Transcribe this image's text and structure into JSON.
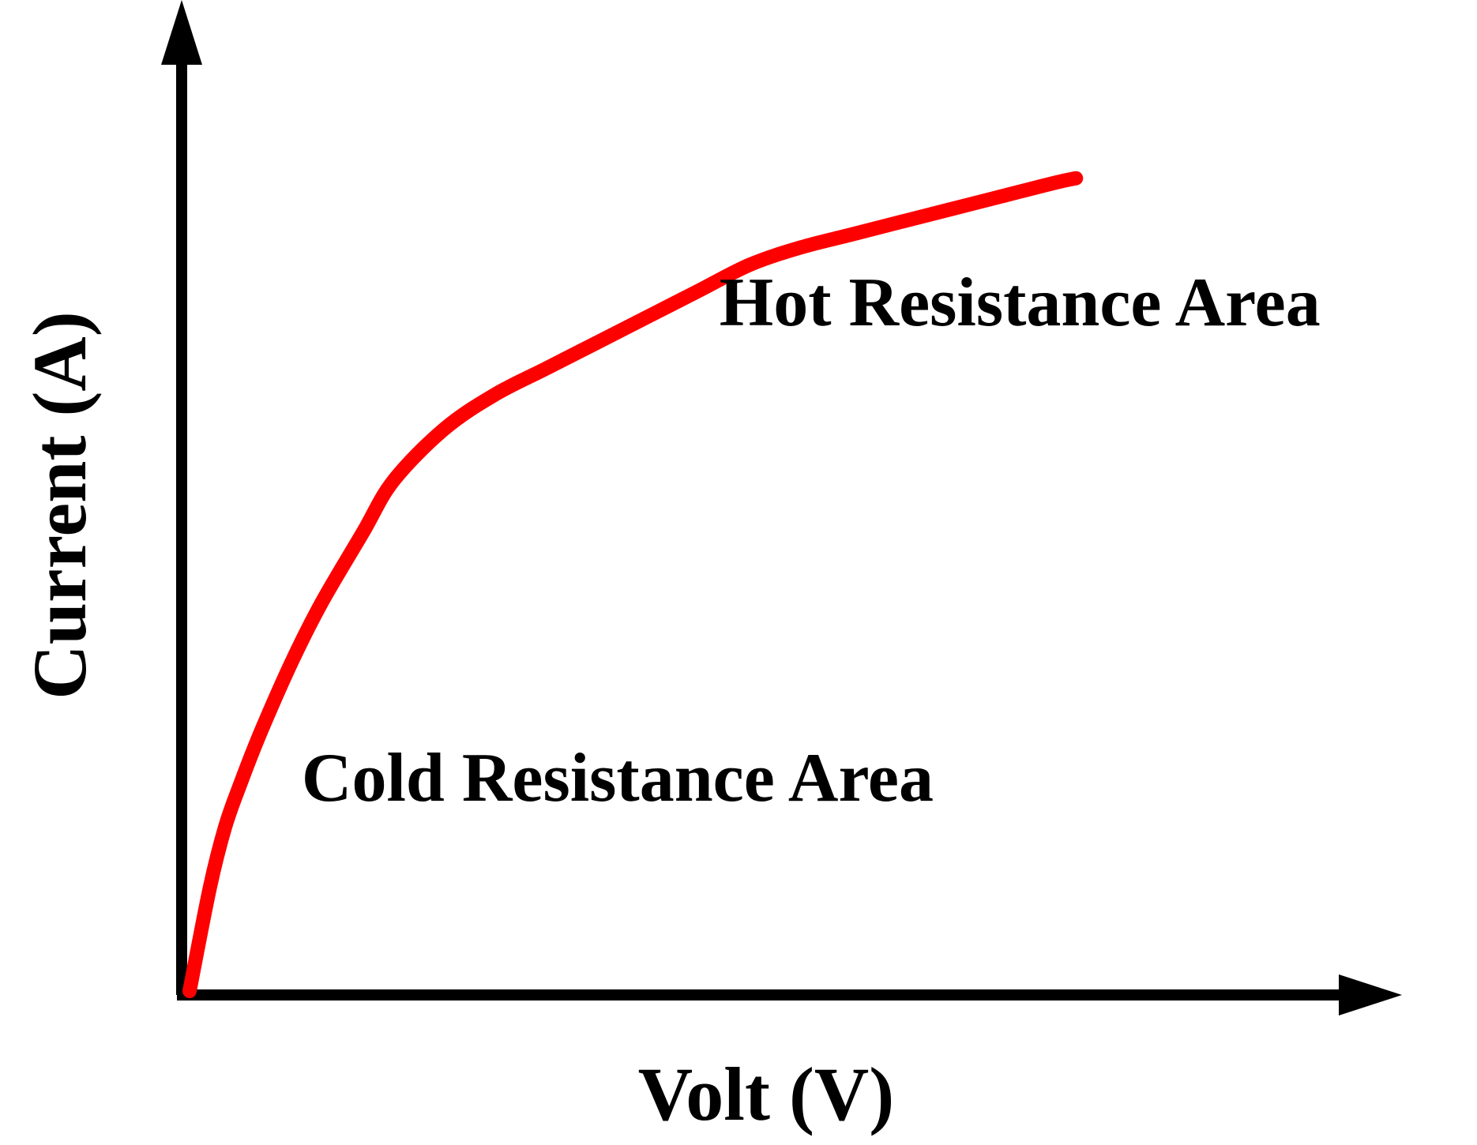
{
  "chart_data": {
    "type": "line",
    "title": "",
    "xlabel": "Volt (V)",
    "ylabel": "Current (A)",
    "xlim": [
      0,
      100
    ],
    "ylim": [
      0,
      100
    ],
    "grid": false,
    "legend": "none",
    "ticks": "none",
    "series": [
      {
        "color": "#ff0000",
        "x": [
          0,
          2,
          3.5,
          5,
          7,
          10,
          13,
          17,
          20,
          25,
          30,
          35,
          40,
          45,
          50,
          55,
          60,
          65,
          70,
          75,
          80,
          85,
          87
        ],
        "y": [
          0,
          12,
          19,
          24,
          30,
          38,
          45,
          53,
          59,
          65,
          69,
          72,
          75,
          78,
          81,
          84,
          86,
          87.5,
          89,
          90.5,
          92,
          93.5,
          94
        ]
      }
    ],
    "annotations": [
      {
        "text": "Hot Resistance Area",
        "x": 52,
        "y": 77
      },
      {
        "text": "Cold Resistance Area",
        "x": 11,
        "y": 22
      }
    ]
  },
  "colors": {
    "axis": "#000000",
    "curve": "#ff0000",
    "text": "#000000"
  }
}
